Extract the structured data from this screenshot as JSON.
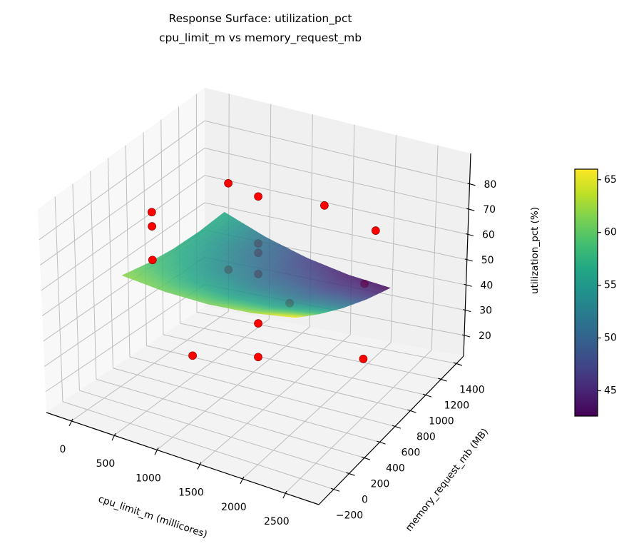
{
  "chart_data": {
    "type": "surface3d",
    "title": "Response Surface: utilization_pct",
    "subtitle": "cpu_limit_m vs memory_request_mb",
    "xlabel": "cpu_limit_m (millicores)",
    "ylabel": "memory_request_mb (MB)",
    "zlabel": "utilization_pct (%)",
    "xlim": [
      -292,
      2893
    ],
    "ylim": [
      -395,
      1494
    ],
    "zlim": [
      11.8,
      92.1
    ],
    "xticks": [
      0,
      500,
      1000,
      1500,
      2000,
      2500
    ],
    "yticks": [
      -200,
      0,
      200,
      400,
      600,
      800,
      1000,
      1200,
      1400
    ],
    "zticks": [
      20,
      30,
      40,
      50,
      60,
      70,
      80
    ],
    "grid": true,
    "surface": {
      "colormap": "viridis",
      "alpha": 0.85,
      "x": [
        250,
        750,
        1250,
        1750,
        2250
      ],
      "y": [
        0,
        300,
        600,
        900,
        1200
      ],
      "z": [
        [
          62.0,
          60.75,
          61.0,
          62.75,
          66.0
        ],
        [
          59.25,
          56.875,
          56.0,
          56.625,
          58.75
        ],
        [
          57.5,
          54.0,
          52.0,
          51.5,
          52.5
        ],
        [
          56.75,
          52.125,
          49.0,
          47.375,
          47.25
        ],
        [
          57.0,
          51.25,
          47.0,
          44.25,
          43.0
        ]
      ]
    },
    "points": {
      "color": "#ff0000",
      "edgecolor": "#8b0000",
      "data": [
        {
          "x": 0,
          "y": 600,
          "z": 69.3
        },
        {
          "x": 0,
          "y": 600,
          "z": 63.9
        },
        {
          "x": 0,
          "y": 600,
          "z": 51.1
        },
        {
          "x": 500,
          "y": 1000,
          "z": 74.7
        },
        {
          "x": 500,
          "y": 1000,
          "z": 42.0
        },
        {
          "x": 1250,
          "y": 600,
          "z": 86.6
        },
        {
          "x": 1250,
          "y": 600,
          "z": 68.5
        },
        {
          "x": 1250,
          "y": 600,
          "z": 64.9
        },
        {
          "x": 1250,
          "y": 600,
          "z": 56.7
        },
        {
          "x": 1250,
          "y": 600,
          "z": 37.7
        },
        {
          "x": 1250,
          "y": 600,
          "z": 24.7
        },
        {
          "x": 1250,
          "y": 1400,
          "z": 61.9
        },
        {
          "x": 1250,
          "y": -200,
          "z": 46.3
        },
        {
          "x": 2000,
          "y": 200,
          "z": 63.4
        },
        {
          "x": 2500,
          "y": 600,
          "z": 64.1
        },
        {
          "x": 2500,
          "y": 600,
          "z": 34.8
        },
        {
          "x": 2250,
          "y": 1000,
          "z": 71.1
        }
      ]
    },
    "colorbar": {
      "range": [
        42.6,
        66.0
      ],
      "ticks": [
        45,
        50,
        55,
        60,
        65
      ]
    }
  }
}
